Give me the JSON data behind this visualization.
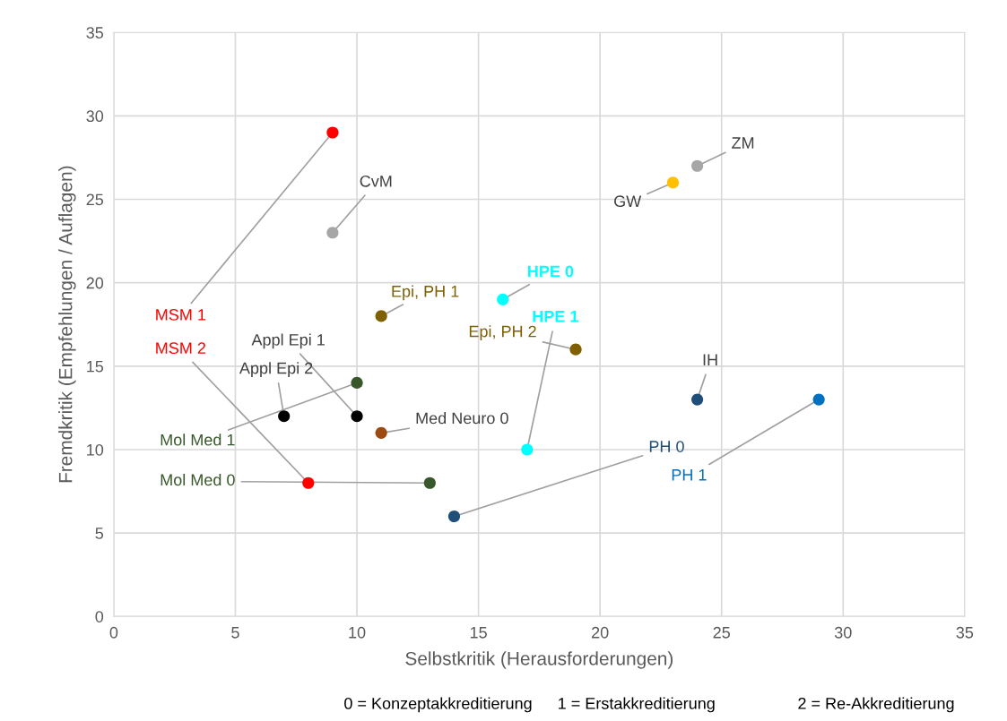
{
  "chart_data": {
    "type": "scatter",
    "xlabel": "Selbstkritik (Herausforderungen)",
    "ylabel": "Fremdkritik (Empfehlungen / Auflagen)",
    "xlim": [
      0,
      35
    ],
    "xticks": [
      0,
      5,
      10,
      15,
      20,
      25,
      30,
      35
    ],
    "ylim": [
      0,
      35
    ],
    "yticks": [
      0,
      5,
      10,
      15,
      20,
      25,
      30,
      35
    ],
    "grid": true,
    "legend": false,
    "marker": "circle",
    "series": [
      {
        "name": "MSM 1",
        "color": "#ff0000",
        "x": [
          9
        ],
        "values": [
          29
        ]
      },
      {
        "name": "CvM",
        "color": "#a6a6a6",
        "x": [
          9
        ],
        "values": [
          23
        ]
      },
      {
        "name": "MSM 2",
        "color": "#ff0000",
        "x": [
          8
        ],
        "values": [
          8
        ]
      },
      {
        "name": "Appl Epi 1",
        "color": "#000000",
        "x": [
          10
        ],
        "values": [
          12
        ]
      },
      {
        "name": "Appl Epi 2",
        "color": "#000000",
        "x": [
          7
        ],
        "values": [
          12
        ]
      },
      {
        "name": "Mol Med 1",
        "color": "#38572a",
        "x": [
          10
        ],
        "values": [
          14
        ]
      },
      {
        "name": "Mol Med 0",
        "color": "#38572a",
        "x": [
          13
        ],
        "values": [
          8
        ]
      },
      {
        "name": "Epi, PH 1",
        "color": "#7f6000",
        "x": [
          11
        ],
        "values": [
          18
        ]
      },
      {
        "name": "Epi, PH 2",
        "color": "#7f6000",
        "x": [
          19
        ],
        "values": [
          16
        ]
      },
      {
        "name": "Med Neuro 0",
        "color": "#9c4a0f",
        "x": [
          11
        ],
        "values": [
          11
        ]
      },
      {
        "name": "HPE 0",
        "color": "#00ffff",
        "x": [
          16
        ],
        "values": [
          19
        ]
      },
      {
        "name": "HPE 1",
        "color": "#00ffff",
        "x": [
          17
        ],
        "values": [
          10
        ]
      },
      {
        "name": "PH 0",
        "color": "#1f4e79",
        "x": [
          14
        ],
        "values": [
          6
        ]
      },
      {
        "name": "PH 1",
        "color": "#0070c0",
        "x": [
          29
        ],
        "values": [
          13
        ]
      },
      {
        "name": "IH",
        "color": "#1f4e79",
        "x": [
          24
        ],
        "values": [
          13
        ]
      },
      {
        "name": "GW",
        "color": "#ffc000",
        "x": [
          23
        ],
        "values": [
          26
        ]
      },
      {
        "name": "ZM",
        "color": "#a6a6a6",
        "x": [
          24
        ],
        "values": [
          27
        ]
      }
    ],
    "annotations": [
      "0 = Konzeptakkreditierung",
      "1 = Erstakkreditierung",
      "2 = Re-Akkreditierung"
    ]
  }
}
